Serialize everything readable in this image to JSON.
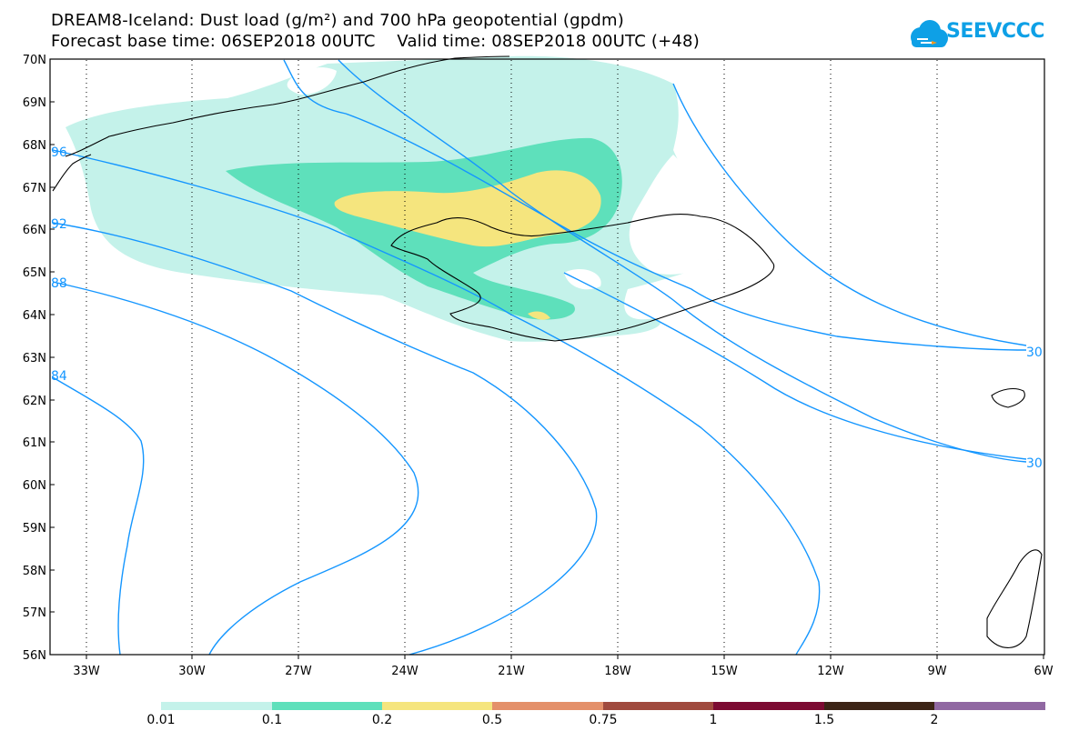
{
  "header": {
    "title_line1": "DREAM8-Iceland: Dust load (g/m²) and 700 hPa geopotential (gpdm)",
    "title_line2": "Forecast base time: 06SEP2018 00UTC    Valid time: 08SEP2018 00UTC (+48)"
  },
  "logo": {
    "text": "SEEVCCC",
    "icon": "cloud-icon",
    "color": "#0ea0e6"
  },
  "map": {
    "lat_labels": [
      "70N",
      "69N",
      "68N",
      "67N",
      "66N",
      "65N",
      "64N",
      "63N",
      "62N",
      "61N",
      "60N",
      "59N",
      "58N",
      "57N",
      "56N"
    ],
    "lon_labels": [
      "33W",
      "30W",
      "27W",
      "24W",
      "21W",
      "18W",
      "15W",
      "12W",
      "9W",
      "6W"
    ],
    "contour_labels": [
      {
        "text": "96"
      },
      {
        "text": "92"
      },
      {
        "text": "88"
      },
      {
        "text": "84"
      },
      {
        "text": "30"
      },
      {
        "text": "30"
      }
    ],
    "contour_color": "#1496ff",
    "coastline_color": "#000000"
  },
  "colorbar": {
    "levels": [
      "0.01",
      "0.1",
      "0.2",
      "0.5",
      "0.75",
      "1",
      "1.5",
      "2"
    ],
    "colors": [
      "#c4f2ea",
      "#5ee0bb",
      "#f5e57e",
      "#e4906a",
      "#a04a3e",
      "#7c0b32",
      "#3c2416",
      "#9068a2"
    ]
  }
}
